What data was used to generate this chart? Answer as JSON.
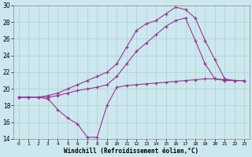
{
  "xlabel": "Windchill (Refroidissement éolien,°C)",
  "background_color": "#cce8ee",
  "grid_color": "#b0d4d0",
  "line_color": "#993399",
  "xlim": [
    -0.5,
    23.5
  ],
  "ylim": [
    14,
    30
  ],
  "xticks": [
    0,
    1,
    2,
    3,
    4,
    5,
    6,
    7,
    8,
    9,
    10,
    11,
    12,
    13,
    14,
    15,
    16,
    17,
    18,
    19,
    20,
    21,
    22,
    23
  ],
  "yticks": [
    14,
    16,
    18,
    20,
    22,
    24,
    26,
    28,
    30
  ],
  "series": [
    {
      "x": [
        0,
        1,
        2,
        3,
        4,
        5,
        6,
        7,
        8,
        9,
        10,
        11,
        12,
        13,
        14,
        15,
        16,
        17,
        18,
        19,
        20,
        21,
        22,
        23
      ],
      "y": [
        19.0,
        19.0,
        19.0,
        19.2,
        19.5,
        20.0,
        20.5,
        21.0,
        21.5,
        22.0,
        23.0,
        25.0,
        27.0,
        27.8,
        28.2,
        29.0,
        29.8,
        29.5,
        28.5,
        25.8,
        23.5,
        21.2,
        21.0,
        21.0
      ]
    },
    {
      "x": [
        0,
        1,
        2,
        3,
        4,
        5,
        6,
        7,
        8,
        9,
        10,
        11,
        12,
        13,
        14,
        15,
        16,
        17,
        18,
        19,
        20,
        21,
        22,
        23
      ],
      "y": [
        19.0,
        19.0,
        19.0,
        19.0,
        19.2,
        19.5,
        19.8,
        20.0,
        20.2,
        20.5,
        21.5,
        23.0,
        24.5,
        25.5,
        26.5,
        27.5,
        28.2,
        28.5,
        25.8,
        23.0,
        21.2,
        21.0,
        21.0,
        21.0
      ]
    },
    {
      "x": [
        0,
        1,
        2,
        3,
        4,
        5,
        6,
        7,
        8,
        9,
        10,
        11,
        12,
        13,
        14,
        15,
        16,
        17,
        18,
        19,
        20,
        21,
        22,
        23
      ],
      "y": [
        19.0,
        19.0,
        19.0,
        18.8,
        17.5,
        16.5,
        15.8,
        14.2,
        14.2,
        18.0,
        20.2,
        20.4,
        20.5,
        20.6,
        20.7,
        20.8,
        20.9,
        21.0,
        21.1,
        21.2,
        21.2,
        21.1,
        21.0,
        21.0
      ]
    }
  ]
}
